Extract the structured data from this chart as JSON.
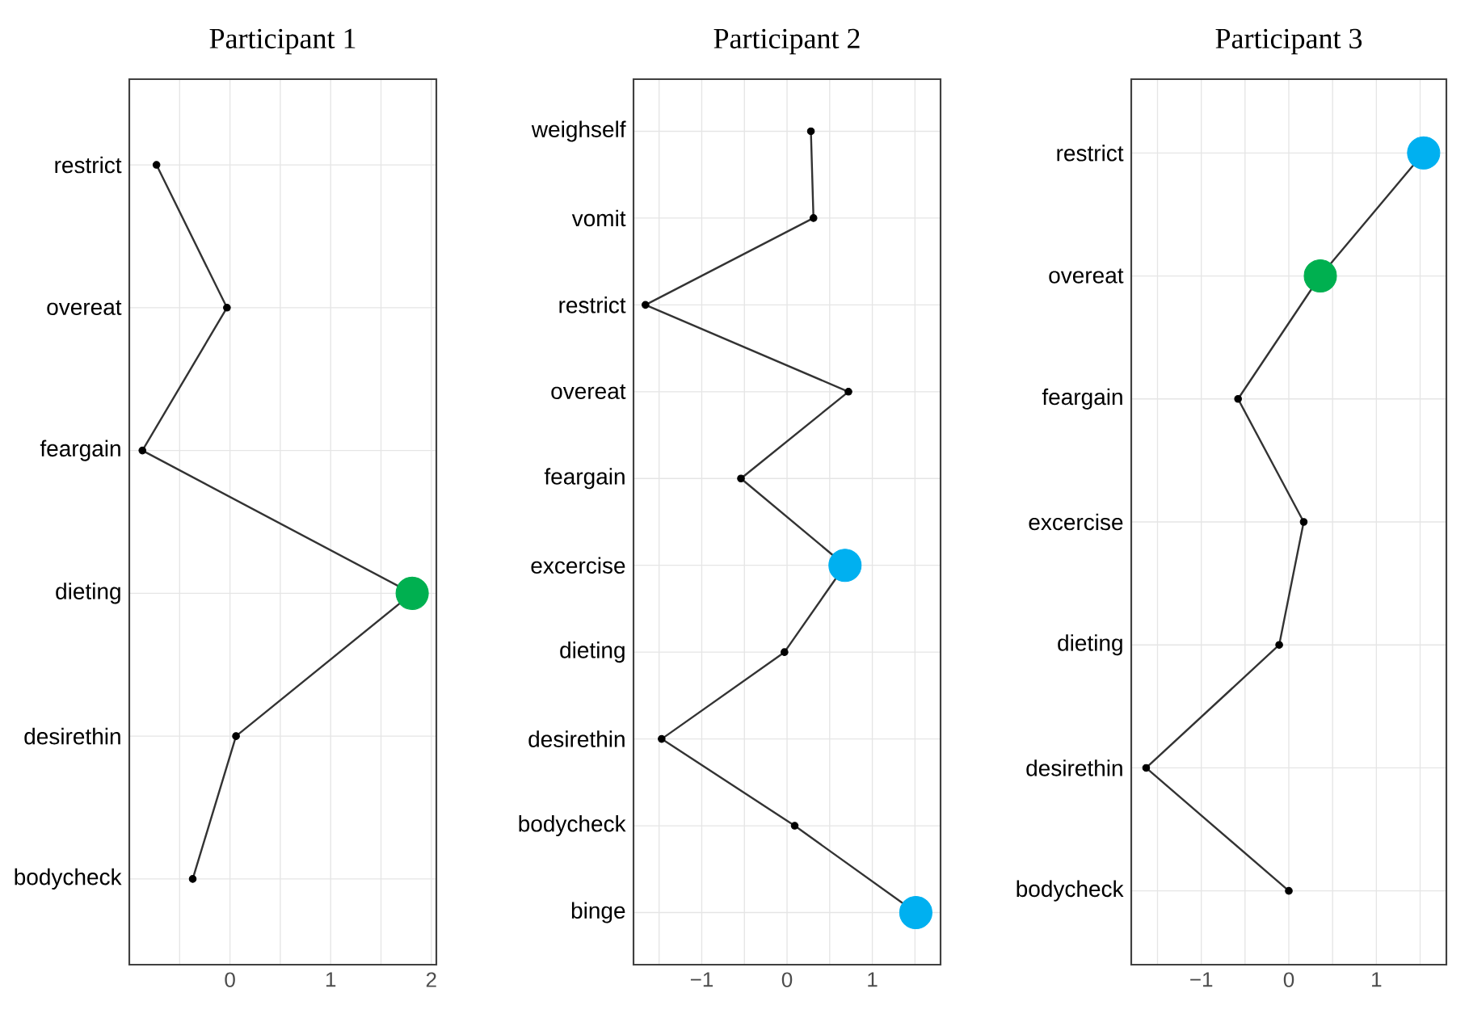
{
  "chart_data": [
    {
      "type": "line",
      "title": "Participant 1",
      "orientation": "horizontal",
      "categories": [
        "restrict",
        "overeat",
        "feargain",
        "dieting",
        "desirethin",
        "bodycheck"
      ],
      "series": [
        {
          "color": "#333333",
          "colors": [
            "#000000",
            "#000000",
            "#000000",
            "#00b050",
            "#000000",
            "#000000"
          ],
          "values": [
            -0.73,
            -0.03,
            -0.87,
            1.81,
            0.06,
            -0.37
          ]
        }
      ],
      "xlim": [
        -1,
        2.05
      ],
      "xticks": [
        {
          "value": -0.5,
          "label": null
        },
        0,
        {
          "value": 0.5,
          "label": null
        },
        1,
        {
          "value": 1.5,
          "label": null
        },
        2
      ],
      "grid": true,
      "marker": "circle"
    },
    {
      "type": "line",
      "title": "Participant 2",
      "orientation": "horizontal",
      "categories": [
        "weighself",
        "vomit",
        "restrict",
        "overeat",
        "feargain",
        "excercise",
        "dieting",
        "desirethin",
        "bodycheck",
        "binge"
      ],
      "series": [
        {
          "color": "#333333",
          "colors": [
            "#000000",
            "#000000",
            "#000000",
            "#000000",
            "#000000",
            "#00b0f0",
            "#000000",
            "#000000",
            "#000000",
            "#00b0f0"
          ],
          "values": [
            0.28,
            0.31,
            -1.66,
            0.72,
            -0.54,
            0.68,
            -0.03,
            -1.47,
            0.09,
            1.51
          ]
        }
      ],
      "xlim": [
        -1.8,
        1.8
      ],
      "xticks": [
        {
          "value": -1.5,
          "label": null
        },
        {
          "value": -1,
          "label": "−1"
        },
        {
          "value": -0.5,
          "label": null
        },
        0,
        {
          "value": 0.5,
          "label": null
        },
        1,
        {
          "value": 1.5,
          "label": null
        }
      ],
      "grid": true,
      "marker": "circle"
    },
    {
      "type": "line",
      "title": "Participant 3",
      "orientation": "horizontal",
      "categories": [
        "restrict",
        "overeat",
        "feargain",
        "excercise",
        "dieting",
        "desirethin",
        "bodycheck"
      ],
      "series": [
        {
          "color": "#333333",
          "colors": [
            "#00b0f0",
            "#00b050",
            "#000000",
            "#000000",
            "#000000",
            "#000000",
            "#000000"
          ],
          "values": [
            1.54,
            0.36,
            -0.58,
            0.17,
            -0.11,
            -1.63,
            0.0
          ]
        }
      ],
      "xlim": [
        -1.8,
        1.8
      ],
      "xticks": [
        {
          "value": -1.5,
          "label": null
        },
        {
          "value": -1,
          "label": "−1"
        },
        {
          "value": -0.5,
          "label": null
        },
        0,
        {
          "value": 0.5,
          "label": null
        },
        1,
        {
          "value": 1.5,
          "label": null
        }
      ],
      "grid": true,
      "marker": "circle"
    }
  ]
}
